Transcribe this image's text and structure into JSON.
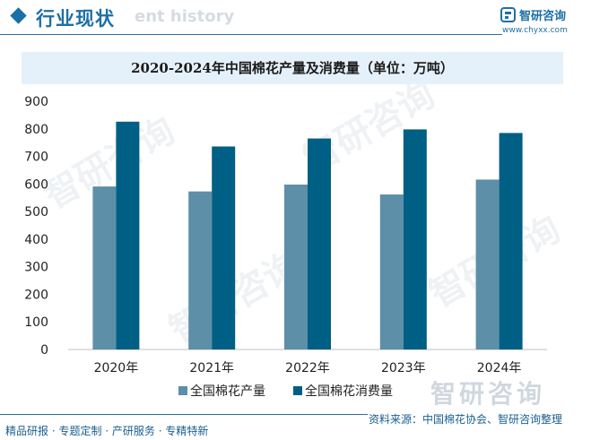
{
  "header": {
    "section_title": "行业现状",
    "bg_text": "ent history",
    "logo_name": "智研咨询",
    "logo_url": "www.chyxx.com"
  },
  "watermark": {
    "text": "智研咨询"
  },
  "chart_data": {
    "type": "bar",
    "title": "2020-2024年中国棉花产量及消费量（单位：万吨）",
    "categories": [
      "2020年",
      "2021年",
      "2022年",
      "2023年",
      "2024年"
    ],
    "series": [
      {
        "name": "全国棉花产量",
        "values": [
          591,
          573,
          598,
          562,
          616
        ],
        "color": "#5d8fa8"
      },
      {
        "name": "全国棉花消费量",
        "values": [
          826,
          736,
          765,
          798,
          785
        ],
        "color": "#005f84"
      }
    ],
    "ylim": [
      0,
      900
    ],
    "yticks": [
      0,
      100,
      200,
      300,
      400,
      500,
      600,
      700,
      800,
      900
    ],
    "legend_position": "bottom",
    "grid": false
  },
  "footer": {
    "left": "精品研报 · 专题定制 · 产研服务 · 专精特新",
    "right": "资料来源：中国棉花协会、智研咨询整理"
  }
}
